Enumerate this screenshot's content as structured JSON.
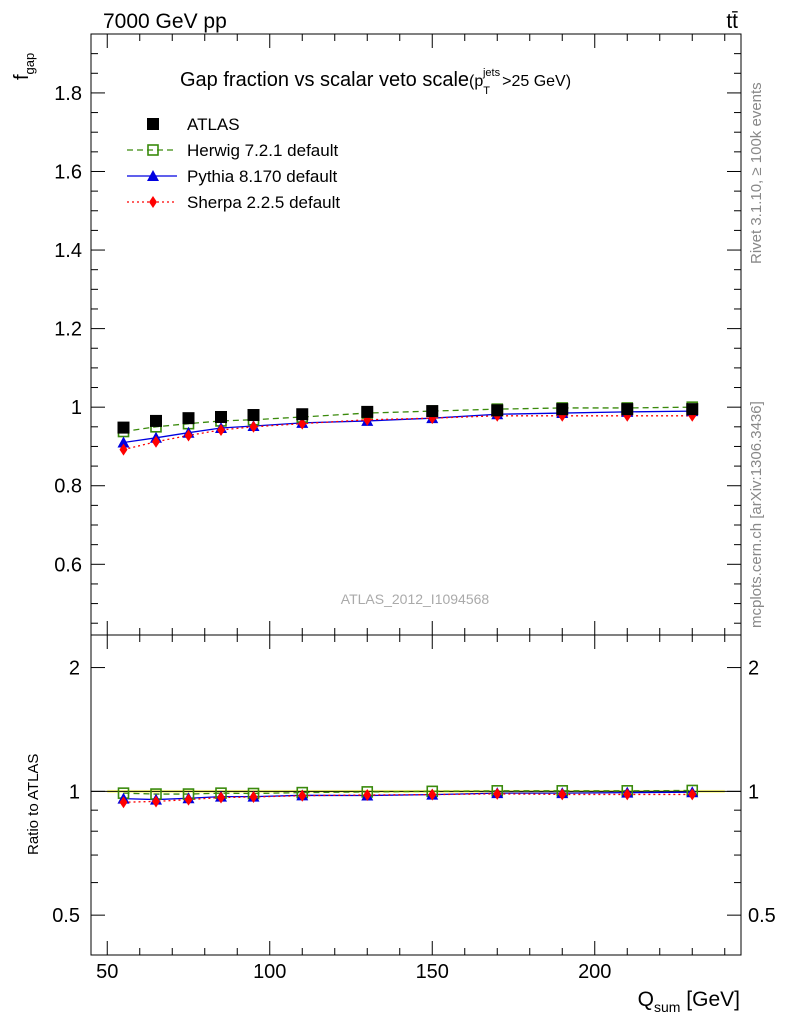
{
  "header": {
    "energy_label": "7000 GeV pp",
    "process_label": "tt̄"
  },
  "side_labels": {
    "rivet": "Rivet 3.1.10, ≥ 100k events",
    "mcplots": "mcplots.cern.ch [arXiv:1306.3436]"
  },
  "chart_data": {
    "type": "scatter",
    "title": "Gap fraction vs scalar veto scale",
    "title_cut": {
      "p": "(p",
      "sub": "T",
      "sup": "jets",
      "rest": ">25 GeV)"
    },
    "analysis_label": "ATLAS_2012_I1094568",
    "ylabel_main": "f",
    "ylabel_main_sub": "gap",
    "ylabel_ratio": "Ratio to ATLAS",
    "xlabel": "Q",
    "xlabel_sub": "sum",
    "xlabel_unit": " [GeV]",
    "xlim": [
      45,
      245
    ],
    "ylim_main": [
      0.42,
      1.95
    ],
    "ylim_ratio": [
      0.4,
      2.4
    ],
    "ratio_log_scale": true,
    "x_ticks": [
      50,
      100,
      150,
      200
    ],
    "y_ticks_main": [
      0.6,
      0.8,
      1,
      1.2,
      1.4,
      1.6,
      1.8
    ],
    "y_tick_labels_main": [
      "0.6",
      "0.8",
      "1",
      "1.2",
      "1.4",
      "1.6",
      "1.8"
    ],
    "y_ticks_ratio": [
      0.5,
      1,
      2
    ],
    "y_tick_labels_ratio": [
      "0.5",
      "1",
      "2"
    ],
    "legend_position": "top-left",
    "x": [
      55,
      65,
      75,
      85,
      95,
      110,
      130,
      150,
      170,
      190,
      210,
      230
    ],
    "series": [
      {
        "name": "ATLAS",
        "color": "#000000",
        "marker": "filled-square",
        "line": "none",
        "values": [
          0.948,
          0.965,
          0.972,
          0.975,
          0.98,
          0.982,
          0.988,
          0.99,
          0.992,
          0.995,
          0.995,
          0.995
        ]
      },
      {
        "name": "Herwig 7.2.1 default",
        "color": "#3a8a0c",
        "marker": "open-square",
        "line": "dashed",
        "values": [
          0.938,
          0.95,
          0.958,
          0.965,
          0.968,
          0.975,
          0.985,
          0.99,
          0.995,
          0.998,
          0.998,
          1.0
        ],
        "ratio": [
          0.99,
          0.985,
          0.985,
          0.99,
          0.988,
          0.993,
          0.997,
          1.0,
          1.003,
          1.003,
          1.003,
          1.005
        ]
      },
      {
        "name": "Pythia 8.170 default",
        "color": "#0000e0",
        "marker": "filled-triangle",
        "line": "solid",
        "values": [
          0.91,
          0.922,
          0.935,
          0.947,
          0.952,
          0.96,
          0.965,
          0.972,
          0.982,
          0.985,
          0.988,
          0.99
        ],
        "ratio": [
          0.96,
          0.955,
          0.962,
          0.971,
          0.971,
          0.978,
          0.977,
          0.982,
          0.99,
          0.99,
          0.993,
          0.995
        ]
      },
      {
        "name": "Sherpa 2.2.5 default",
        "color": "#ff0000",
        "marker": "filled-diamond",
        "line": "dotted",
        "values": [
          0.892,
          0.912,
          0.928,
          0.942,
          0.95,
          0.958,
          0.968,
          0.972,
          0.978,
          0.978,
          0.978,
          0.978
        ],
        "ratio": [
          0.941,
          0.945,
          0.955,
          0.966,
          0.969,
          0.976,
          0.98,
          0.982,
          0.986,
          0.983,
          0.983,
          0.983
        ]
      }
    ]
  }
}
